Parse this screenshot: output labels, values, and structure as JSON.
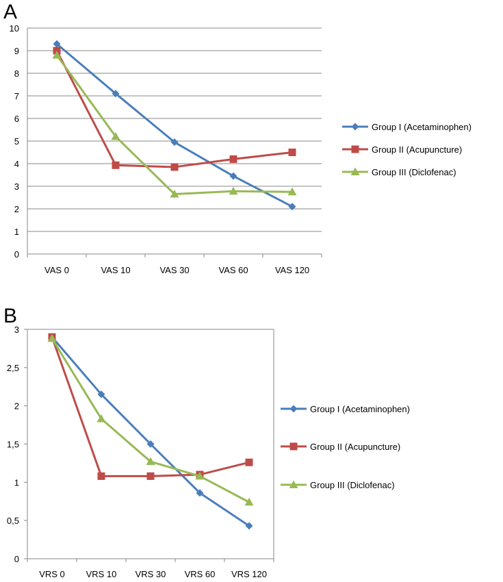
{
  "chart_data": [
    {
      "panel": "A",
      "type": "line",
      "categories": [
        "VAS 0",
        "VAS 10",
        "VAS 30",
        "VAS 60",
        "VAS 120"
      ],
      "ylim": [
        0,
        10
      ],
      "yticks": [
        "0",
        "1",
        "2",
        "3",
        "4",
        "5",
        "6",
        "7",
        "8",
        "9",
        "10"
      ],
      "grid": true,
      "legend_position": "right",
      "series": [
        {
          "name": "Group I  (Acetaminophen)",
          "color": "#4a7ebb",
          "marker": "diamond",
          "values": [
            9.3,
            7.1,
            4.95,
            3.45,
            2.1
          ]
        },
        {
          "name": "Group II (Acupuncture)",
          "color": "#be4b48",
          "marker": "square",
          "values": [
            9.0,
            3.93,
            3.85,
            4.2,
            4.5
          ]
        },
        {
          "name": "Group III (Diclofenac)",
          "color": "#98b954",
          "marker": "triangle",
          "values": [
            8.8,
            5.2,
            2.65,
            2.78,
            2.75
          ]
        }
      ]
    },
    {
      "panel": "B",
      "type": "line",
      "categories": [
        "VRS 0",
        "VRS 10",
        "VRS 30",
        "VRS 60",
        "VRS 120"
      ],
      "ylim": [
        0,
        3
      ],
      "yticks": [
        "0",
        "0,5",
        "1",
        "1,5",
        "2",
        "2,5",
        "3"
      ],
      "grid": false,
      "legend_position": "right",
      "series": [
        {
          "name": "Group I  (Acetaminophen)",
          "color": "#4a7ebb",
          "marker": "diamond",
          "values": [
            2.9,
            2.15,
            1.5,
            0.86,
            0.43
          ]
        },
        {
          "name": "Group II (Acupuncture)",
          "color": "#be4b48",
          "marker": "square",
          "values": [
            2.9,
            1.08,
            1.08,
            1.1,
            1.26
          ]
        },
        {
          "name": "Group III (Diclofenac)",
          "color": "#98b954",
          "marker": "triangle",
          "values": [
            2.88,
            1.83,
            1.27,
            1.08,
            0.74
          ]
        }
      ]
    }
  ]
}
